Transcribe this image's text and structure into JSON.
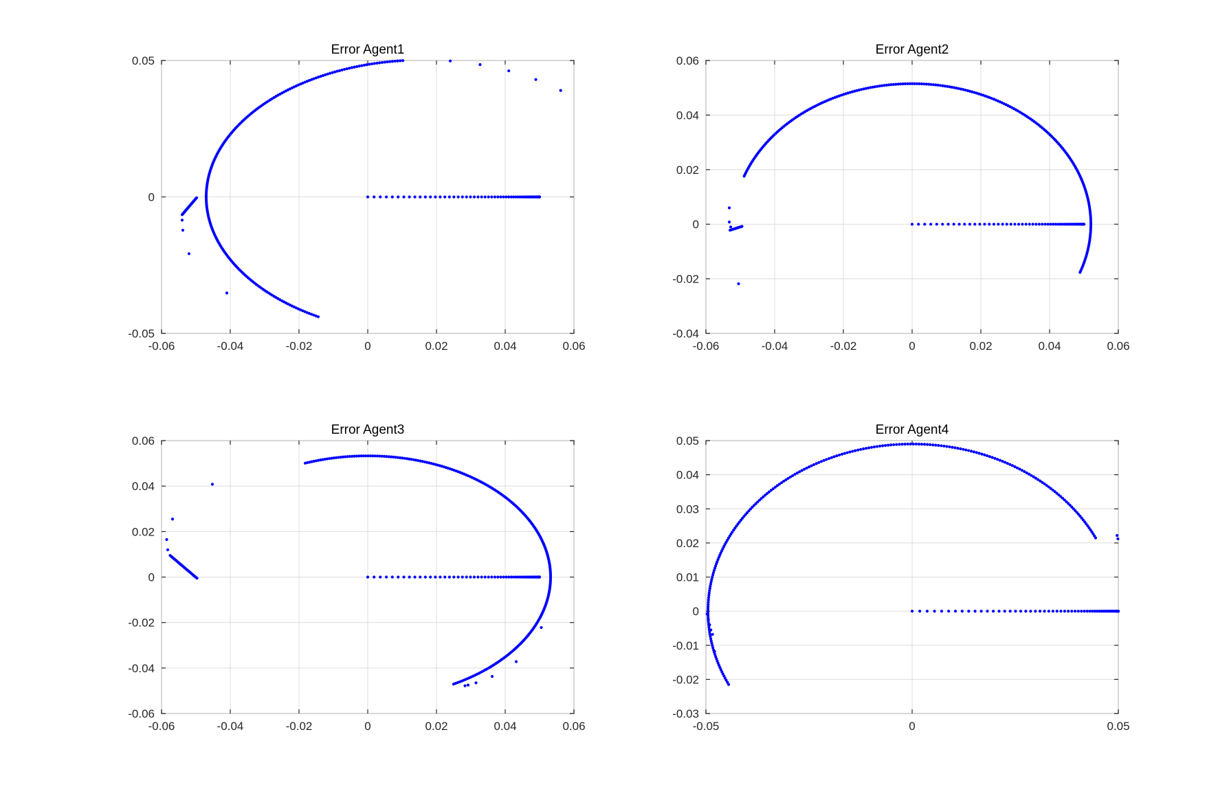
{
  "figure": {
    "background": "#ffffff",
    "marker_color": "#0000ff"
  },
  "chart_data": [
    {
      "type": "scatter",
      "title": "Error Agent1",
      "xlabel": "",
      "ylabel": "",
      "xlim": [
        -0.06,
        0.06
      ],
      "ylim": [
        -0.05,
        0.05
      ],
      "xticks": [
        -0.06,
        -0.04,
        -0.02,
        0,
        0.02,
        0.04,
        0.06
      ],
      "yticks": [
        -0.05,
        0,
        0.05
      ],
      "xtick_labels": [
        "-0.06",
        "-0.04",
        "-0.02",
        "0",
        "0.02",
        "0.04",
        "0.06"
      ],
      "ytick_labels": [
        "-0.05",
        "0",
        "0.05"
      ],
      "grid": true,
      "series": [
        {
          "kind": "ellipse_arc",
          "cx": 0.0163,
          "cy": 0.0,
          "rx": 0.0633,
          "ry": 0.0502,
          "start_deg": 90,
          "end_deg": 241,
          "count": 220
        },
        {
          "kind": "ellipse_arc",
          "cx": 0.0163,
          "cy": 0.0,
          "rx": 0.0633,
          "ry": 0.0502,
          "start_deg": 83,
          "end_deg": 27,
          "count": 8
        },
        {
          "kind": "line_points",
          "from": [
            0,
            0
          ],
          "to": [
            0.05,
            0
          ],
          "count": 60,
          "bias": 2.2
        },
        {
          "kind": "line_points",
          "from": [
            -0.0498,
            -0.0003
          ],
          "to": [
            -0.054,
            -0.0065
          ],
          "count": 25,
          "bias": 1
        },
        {
          "kind": "points",
          "x": [
            -0.054,
            -0.0538,
            -0.052,
            -0.041
          ],
          "y": [
            -0.0085,
            -0.0122,
            -0.0208,
            -0.0352
          ]
        }
      ]
    },
    {
      "type": "scatter",
      "title": "Error Agent2",
      "xlabel": "",
      "ylabel": "",
      "xlim": [
        -0.06,
        0.06
      ],
      "ylim": [
        -0.04,
        0.06
      ],
      "xticks": [
        -0.06,
        -0.04,
        -0.02,
        0,
        0.02,
        0.04,
        0.06
      ],
      "yticks": [
        -0.04,
        -0.02,
        0,
        0.02,
        0.04,
        0.06
      ],
      "xtick_labels": [
        "-0.06",
        "-0.04",
        "-0.02",
        "0",
        "0.02",
        "0.04",
        "0.06"
      ],
      "ytick_labels": [
        "-0.04",
        "-0.02",
        "0",
        "0.02",
        "0.04",
        "0.06"
      ],
      "grid": true,
      "series": [
        {
          "kind": "ellipse_arc",
          "cx": 0.0,
          "cy": 0.0,
          "rx": 0.052,
          "ry": 0.0515,
          "start_deg": -20,
          "end_deg": 160,
          "count": 240
        },
        {
          "kind": "line_points",
          "from": [
            0,
            0
          ],
          "to": [
            0.05,
            0
          ],
          "count": 60,
          "bias": 2.2
        },
        {
          "kind": "line_points",
          "from": [
            -0.0495,
            -0.0008
          ],
          "to": [
            -0.053,
            -0.0022
          ],
          "count": 12,
          "bias": 1
        },
        {
          "kind": "points",
          "x": [
            -0.0532,
            -0.0532,
            -0.0528,
            -0.0505
          ],
          "y": [
            0.006,
            0.0008,
            -0.001,
            -0.0218
          ]
        }
      ]
    },
    {
      "type": "scatter",
      "title": "Error Agent3",
      "xlabel": "",
      "ylabel": "",
      "xlim": [
        -0.06,
        0.06
      ],
      "ylim": [
        -0.06,
        0.06
      ],
      "xticks": [
        -0.06,
        -0.04,
        -0.02,
        0,
        0.02,
        0.04,
        0.06
      ],
      "yticks": [
        -0.06,
        -0.04,
        -0.02,
        0,
        0.02,
        0.04,
        0.06
      ],
      "xtick_labels": [
        "-0.06",
        "-0.04",
        "-0.02",
        "0",
        "0.02",
        "0.04",
        "0.06"
      ],
      "ytick_labels": [
        "-0.06",
        "-0.04",
        "-0.02",
        "0",
        "0.02",
        "0.04",
        "0.06"
      ],
      "grid": true,
      "series": [
        {
          "kind": "ellipse_arc",
          "cx": 0.0,
          "cy": 0.0,
          "rx": 0.0532,
          "ry": 0.0533,
          "start_deg": -62,
          "end_deg": 110,
          "count": 240
        },
        {
          "kind": "line_points",
          "from": [
            0,
            0
          ],
          "to": [
            0.05,
            0
          ],
          "count": 60,
          "bias": 2.2
        },
        {
          "kind": "line_points",
          "from": [
            -0.0497,
            -0.0005
          ],
          "to": [
            -0.0575,
            0.0095
          ],
          "count": 30,
          "bias": 1
        },
        {
          "kind": "points",
          "x": [
            -0.0452,
            -0.0568,
            -0.0585,
            -0.0582,
            0.0505,
            0.0432,
            0.0362,
            0.0315,
            0.0292,
            0.0283
          ],
          "y": [
            0.0408,
            0.0255,
            0.0165,
            0.012,
            -0.0222,
            -0.0372,
            -0.0437,
            -0.0465,
            -0.0475,
            -0.0478
          ]
        }
      ]
    },
    {
      "type": "scatter",
      "title": "Error Agent4",
      "xlabel": "",
      "ylabel": "",
      "xlim": [
        -0.05,
        0.05
      ],
      "ylim": [
        -0.03,
        0.05
      ],
      "xticks": [
        -0.05,
        0,
        0.05
      ],
      "yticks": [
        -0.03,
        -0.02,
        -0.01,
        0,
        0.01,
        0.02,
        0.03,
        0.04,
        0.05
      ],
      "xtick_labels": [
        "-0.05",
        "0",
        "0.05"
      ],
      "ytick_labels": [
        "-0.03",
        "-0.02",
        "-0.01",
        "0",
        "0.01",
        "0.02",
        "0.03",
        "0.04",
        "0.05"
      ],
      "grid": true,
      "series": [
        {
          "kind": "ellipse_arc",
          "cx": 0.0,
          "cy": 0.0,
          "rx": 0.0495,
          "ry": 0.049,
          "start_deg": 26,
          "end_deg": 206,
          "count": 230
        },
        {
          "kind": "line_points",
          "from": [
            0,
            0
          ],
          "to": [
            0.05,
            0
          ],
          "count": 60,
          "bias": 2.2
        },
        {
          "kind": "points",
          "x": [
            -0.0497,
            -0.0494,
            -0.0491,
            -0.0488,
            -0.0484,
            -0.0479,
            0.0497,
            0.0499
          ],
          "y": [
            -0.0008,
            -0.0025,
            -0.004,
            -0.0055,
            -0.0068,
            -0.0118,
            0.0222,
            0.0212
          ]
        }
      ]
    }
  ]
}
